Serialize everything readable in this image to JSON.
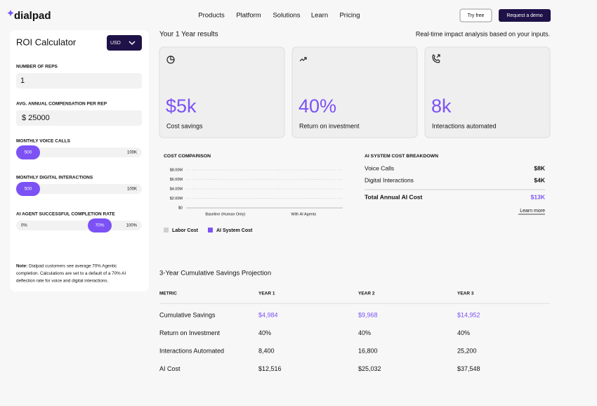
{
  "nav": {
    "logo": "dialpad",
    "links": [
      "Products",
      "Platform",
      "Solutions",
      "Learn",
      "Pricing"
    ],
    "try_free": "Try free",
    "demo": "Request a demo"
  },
  "calculator": {
    "title": "ROI Calculator",
    "currency": "USD",
    "fields": [
      {
        "label": "NUMBER OF REPS",
        "value": "1"
      },
      {
        "label": "AVG. ANNUAL COMPENSATION PER REP",
        "value": "$ 25000"
      }
    ],
    "sliders": [
      {
        "label": "MONTHLY VOICE CALLS",
        "value": "500",
        "max": "100K"
      },
      {
        "label": "MONTHLY DIGITAL INTERACTIONS",
        "value": "500",
        "max": "100K"
      },
      {
        "label": "AI AGENT SUCCESSFUL COMPLETION RATE",
        "min": "0%",
        "value": "70%",
        "max": "100%"
      }
    ],
    "note_label": "Note:",
    "note": [
      "Dialpad customers see average 70% Agentic",
      "completion. Calculations are set to a default of a 70% AI",
      "deflection rate for voice and digital interactions."
    ]
  },
  "results": {
    "title": "Your 1 Year results",
    "subtitle": "Real-time impact analysis based on your inputs.",
    "cards": [
      {
        "value": "$5k",
        "label": "Cost savings"
      },
      {
        "value": "40%",
        "label": "Return on investment"
      },
      {
        "value": "8k",
        "label": "Interactions automated"
      }
    ]
  },
  "chart_data": {
    "type": "bar",
    "title": "COST COMPARISON",
    "categories": [
      "Baseline (Human Only)",
      "With AI Agents"
    ],
    "series": [
      {
        "name": "Labor Cost",
        "color": "#cfcfcf",
        "values": [
          0,
          0
        ]
      },
      {
        "name": "AI System Cost",
        "color": "#7c52f5",
        "values": [
          0,
          0
        ]
      }
    ],
    "ylim": [
      0,
      8000000
    ],
    "yticks": [
      {
        "value": 0,
        "label": "$0"
      },
      {
        "value": 2000000,
        "label": "$2.00M"
      },
      {
        "value": 4000000,
        "label": "$4.00M"
      },
      {
        "value": 6000000,
        "label": "$6.00M"
      },
      {
        "value": 8000000,
        "label": "$8.00M"
      }
    ],
    "grid": true,
    "legend": "bottom"
  },
  "breakdown": {
    "title": "AI SYSTEM COST BREAKDOWN",
    "rows": [
      [
        "Voice Calls",
        "$8K"
      ],
      [
        "Digital Interactions",
        "$4K"
      ]
    ],
    "total": [
      "Total Annual AI Cost",
      "$13K"
    ],
    "link": "Learn more"
  },
  "projection": {
    "title": "3-Year Cumulative Savings Projection",
    "header": [
      "METRIC",
      "YEAR 1",
      "YEAR 2",
      "YEAR 3"
    ],
    "rows": [
      [
        "Cumulative Savings",
        "$4,984",
        "$9,968",
        "$14,952"
      ],
      [
        "Return on Investment",
        "40%",
        "40%",
        "40%"
      ],
      [
        "Interactions Automated",
        "8,400",
        "16,800",
        "25,200"
      ],
      [
        "AI Cost",
        "$12,516",
        "$25,032",
        "$37,548"
      ]
    ]
  }
}
